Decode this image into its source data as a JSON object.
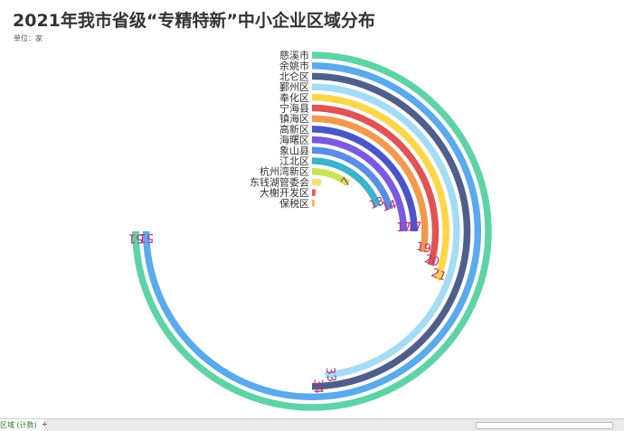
{
  "page": {
    "title": "2021年我市省级“专精特新”中小企业区域分布",
    "unit": "单位：家"
  },
  "sheet_tabs": {
    "active_tab": "区域 (计数)",
    "add_symbol": "+"
  },
  "chart_data": {
    "type": "radial-bar",
    "title": "2021年我市省级“专精特新”中小企业区域分布",
    "unit": "单位：家",
    "max_value": 51,
    "categories": [
      "慈溪市",
      "余姚市",
      "北仑区",
      "鄞州区",
      "奉化区",
      "宁海县",
      "镇海区",
      "高新区",
      "海曙区",
      "象山县",
      "江北区",
      "杭州湾新区",
      "东钱湖管委会",
      "大榭开发区",
      "保税区"
    ],
    "values": [
      51,
      51,
      34,
      33,
      21,
      20,
      19,
      17,
      17,
      14,
      13,
      7,
      2,
      1,
      1
    ],
    "data_labels": [
      "51",
      "51",
      "34",
      "33",
      "21",
      "20",
      "19",
      "17",
      "17",
      "14",
      "13",
      "7",
      "",
      "",
      ""
    ],
    "colors": [
      "#5fd3a5",
      "#5aaaec",
      "#4f5f8a",
      "#a5dcf5",
      "#fdd64a",
      "#e05454",
      "#f19a4f",
      "#4a55c8",
      "#7a5ae0",
      "#5b8de6",
      "#3cb3c8",
      "#c8e55a",
      "#f5dd7a",
      "#ef5f5f",
      "#f4b65c"
    ]
  }
}
